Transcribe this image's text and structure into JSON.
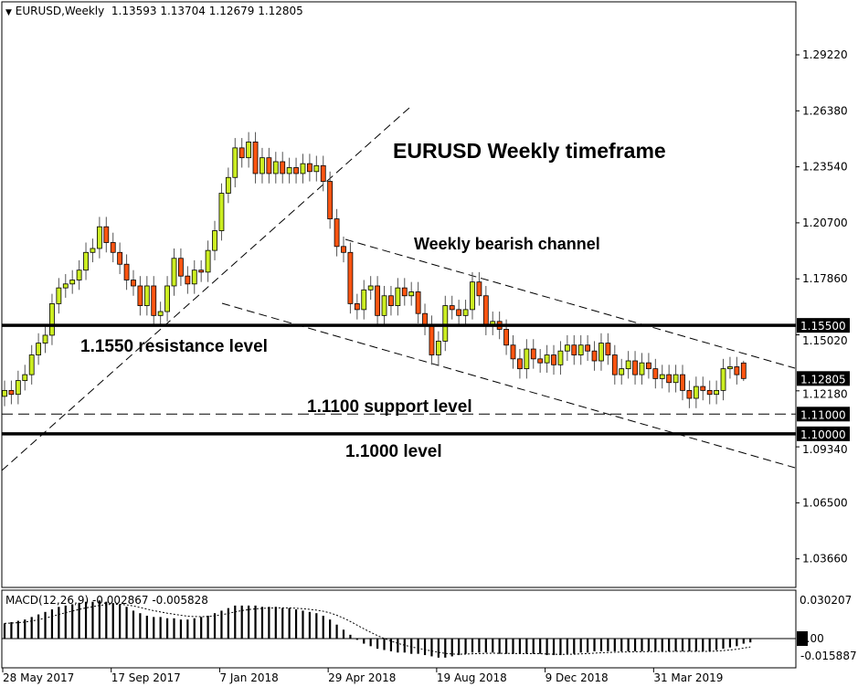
{
  "header": {
    "symbol_timeframe": "EURUSD,Weekly",
    "ohlc": "1.13593 1.13704 1.12679 1.12805",
    "menu_icon": "triangle-down-icon"
  },
  "colors": {
    "bull": "#ccee22",
    "bear": "#ff5511",
    "outline": "#000000",
    "wick": "#555555"
  },
  "chart_data": {
    "type": "candlestick",
    "ylim": [
      1.02,
      1.312
    ],
    "y_ticks": [
      "1.29220",
      "1.26380",
      "1.23540",
      "1.20700",
      "1.17860",
      "1.15020",
      "1.12180",
      "1.09340",
      "1.06500",
      "1.03660"
    ],
    "x_ticks": [
      {
        "label": "28 May 2017",
        "week": 0
      },
      {
        "label": "17 Sep 2017",
        "week": 16
      },
      {
        "label": "7 Jan 2018",
        "week": 32
      },
      {
        "label": "29 Apr 2018",
        "week": 48
      },
      {
        "label": "19 Aug 2018",
        "week": 64
      },
      {
        "label": "9 Dec 2018",
        "week": 80
      },
      {
        "label": "31 Mar 2019",
        "week": 96
      }
    ],
    "closes": [
      1.122,
      1.12,
      1.127,
      1.13,
      1.14,
      1.146,
      1.15,
      1.166,
      1.174,
      1.176,
      1.178,
      1.183,
      1.192,
      1.194,
      1.205,
      1.197,
      1.192,
      1.186,
      1.178,
      1.175,
      1.165,
      1.175,
      1.16,
      1.162,
      1.175,
      1.189,
      1.18,
      1.176,
      1.183,
      1.182,
      1.193,
      1.203,
      1.222,
      1.23,
      1.245,
      1.24,
      1.248,
      1.232,
      1.24,
      1.232,
      1.238,
      1.232,
      1.235,
      1.232,
      1.237,
      1.233,
      1.236,
      1.228,
      1.209,
      1.195,
      1.192,
      1.166,
      1.163,
      1.173,
      1.175,
      1.16,
      1.17,
      1.165,
      1.174,
      1.17,
      1.172,
      1.161,
      1.155,
      1.14,
      1.147,
      1.165,
      1.163,
      1.16,
      1.163,
      1.177,
      1.17,
      1.155,
      1.157,
      1.153,
      1.145,
      1.138,
      1.133,
      1.143,
      1.138,
      1.136,
      1.14,
      1.135,
      1.142,
      1.145,
      1.14,
      1.145,
      1.142,
      1.137,
      1.146,
      1.14,
      1.13,
      1.133,
      1.137,
      1.13,
      1.136,
      1.133,
      1.128,
      1.13,
      1.126,
      1.13,
      1.122,
      1.118,
      1.124,
      1.122,
      1.12,
      1.122,
      1.133,
      1.134,
      1.13,
      1.13593
    ],
    "last_candle": {
      "open": 1.13593,
      "high": 1.13704,
      "low": 1.12679,
      "close": 1.12805
    },
    "levels": [
      {
        "price": 1.155,
        "label": "1.15500",
        "style": "solid-thick"
      },
      {
        "price": 1.11,
        "label": "1.11000",
        "style": "dashed"
      },
      {
        "price": 1.1,
        "label": "1.10000",
        "style": "solid-thick"
      }
    ],
    "current_price_label": "1.12805",
    "annotations": {
      "title": "EURUSD Weekly timeframe",
      "channel": "Weekly bearish channel",
      "resistance": "1.1550 resistance level",
      "support": "1.1100 support level",
      "level1000": "1.1000 level"
    },
    "macd": {
      "label": "MACD(12,26,9) -0.002867 -0.005828",
      "ylim": [
        -0.02,
        0.036
      ],
      "y_ticks": [
        "0.030207",
        "0.00",
        "-0.015887"
      ],
      "histogram": [
        0.012,
        0.013,
        0.014,
        0.015,
        0.017,
        0.019,
        0.021,
        0.023,
        0.025,
        0.026,
        0.027,
        0.028,
        0.029,
        0.029,
        0.03,
        0.029,
        0.028,
        0.027,
        0.025,
        0.022,
        0.02,
        0.018,
        0.017,
        0.017,
        0.016,
        0.016,
        0.015,
        0.015,
        0.016,
        0.017,
        0.018,
        0.02,
        0.022,
        0.024,
        0.026,
        0.026,
        0.026,
        0.026,
        0.025,
        0.025,
        0.025,
        0.024,
        0.024,
        0.023,
        0.022,
        0.021,
        0.02,
        0.018,
        0.015,
        0.011,
        0.007,
        0.003,
        -0.001,
        -0.004,
        -0.006,
        -0.008,
        -0.009,
        -0.01,
        -0.011,
        -0.011,
        -0.012,
        -0.012,
        -0.013,
        -0.014,
        -0.015,
        -0.015,
        -0.014,
        -0.013,
        -0.012,
        -0.011,
        -0.011,
        -0.011,
        -0.011,
        -0.012,
        -0.012,
        -0.012,
        -0.012,
        -0.012,
        -0.012,
        -0.012,
        -0.013,
        -0.013,
        -0.013,
        -0.012,
        -0.012,
        -0.011,
        -0.011,
        -0.01,
        -0.01,
        -0.01,
        -0.01,
        -0.01,
        -0.01,
        -0.01,
        -0.01,
        -0.01,
        -0.01,
        -0.01,
        -0.01,
        -0.01,
        -0.01,
        -0.01,
        -0.01,
        -0.01,
        -0.01,
        -0.009,
        -0.008,
        -0.007,
        -0.006,
        -0.004,
        -0.003
      ]
    }
  }
}
